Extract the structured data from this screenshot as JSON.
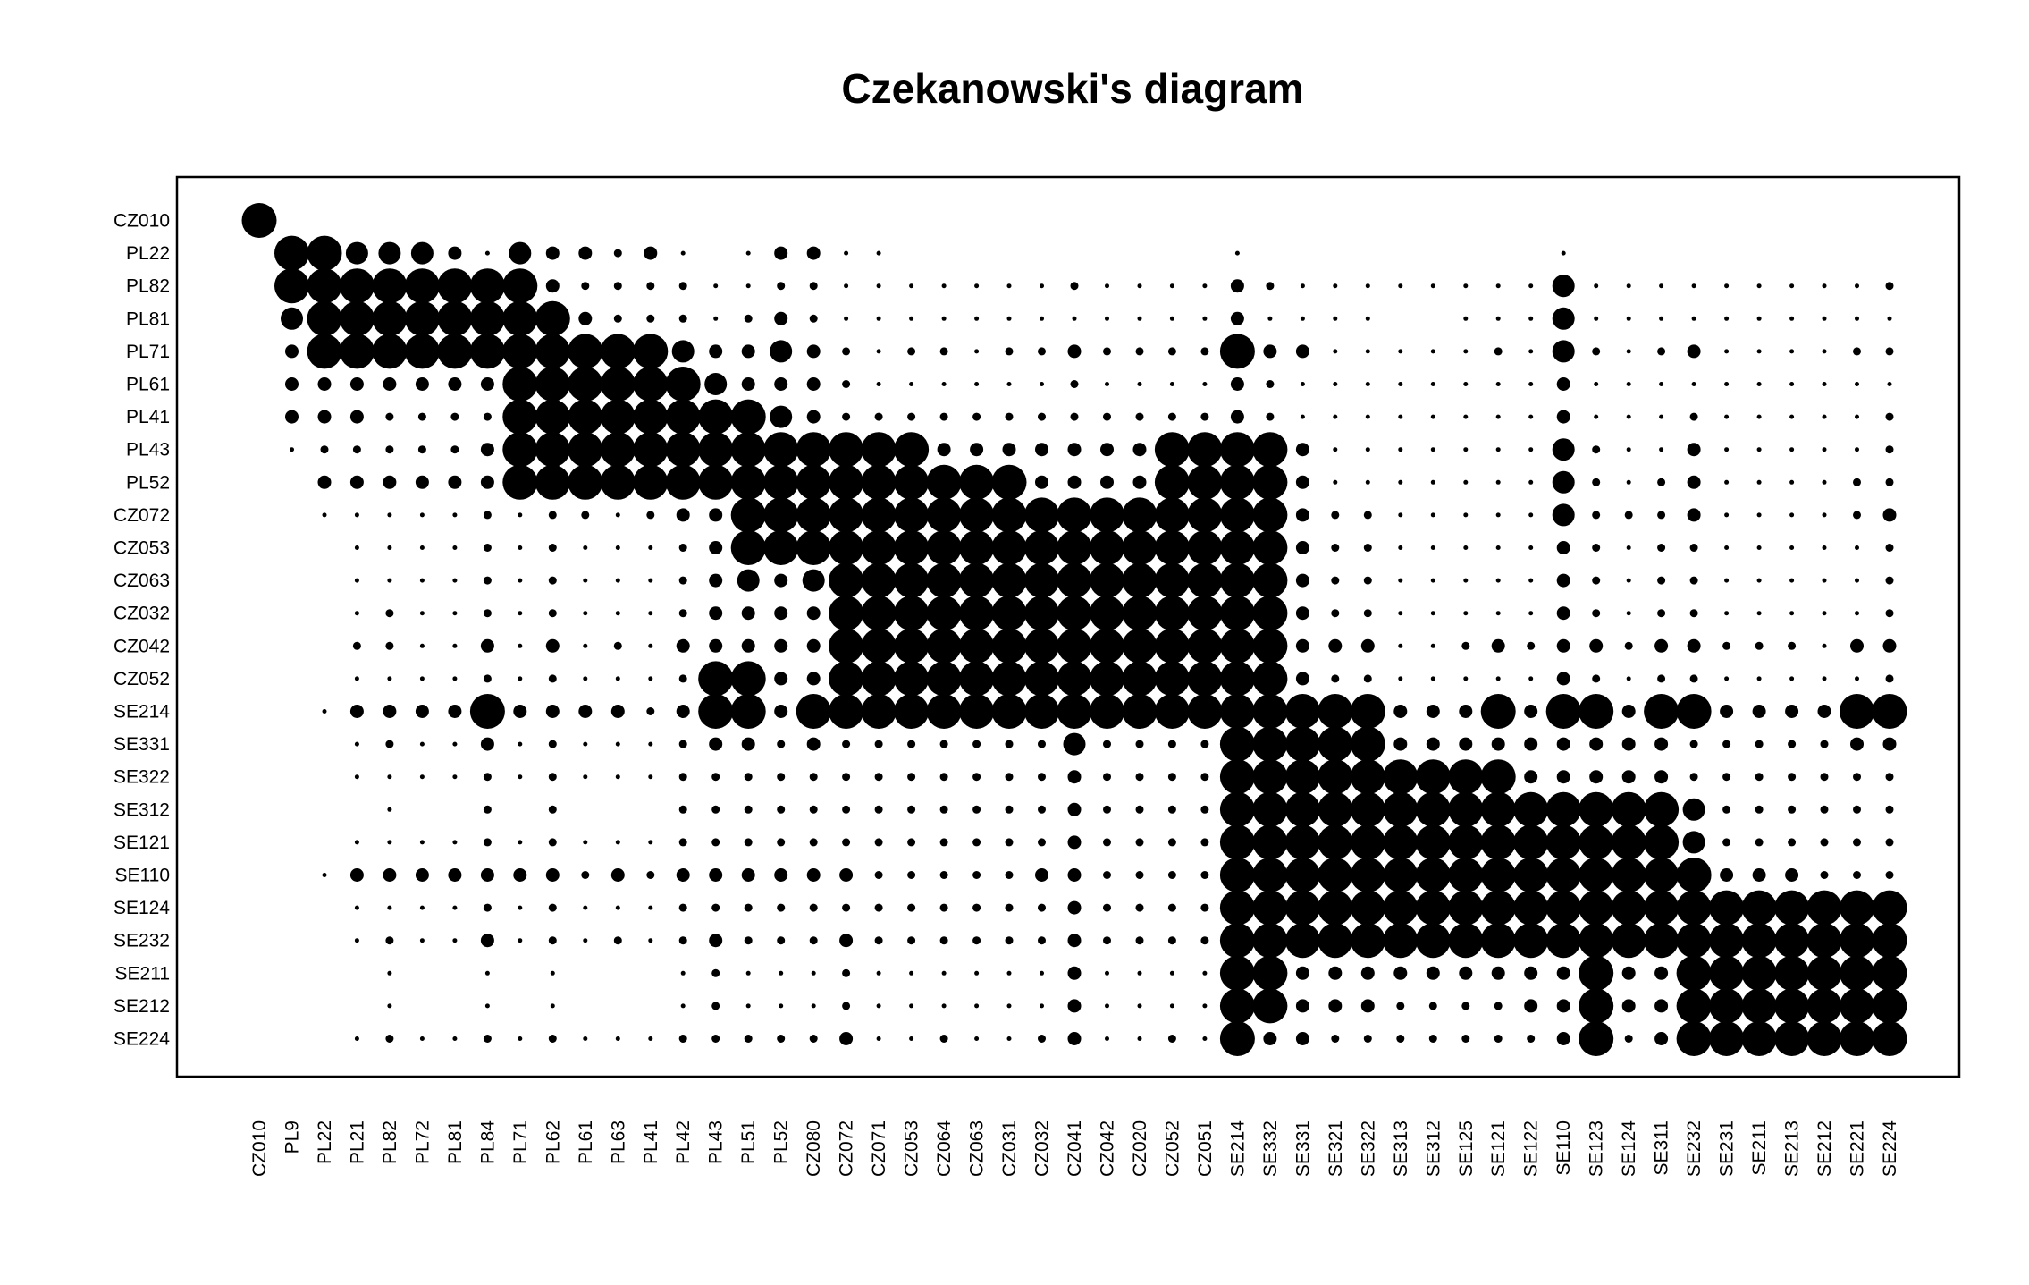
{
  "chart_data": {
    "type": "heatmap",
    "title": "Czekanowski's diagram",
    "xlabel": "",
    "ylabel": "",
    "grid": false,
    "legend": "none",
    "colors": {
      "mark": "#000000",
      "frame": "#000000",
      "background": "#ffffff"
    },
    "x_labels": [
      "CZ010",
      "PL9",
      "PL22",
      "PL21",
      "PL82",
      "PL72",
      "PL81",
      "PL84",
      "PL71",
      "PL62",
      "PL61",
      "PL63",
      "PL41",
      "PL42",
      "PL43",
      "PL51",
      "PL52",
      "CZ080",
      "CZ072",
      "CZ071",
      "CZ053",
      "CZ064",
      "CZ063",
      "CZ031",
      "CZ032",
      "CZ041",
      "CZ042",
      "CZ020",
      "CZ052",
      "CZ051",
      "SE214",
      "SE332",
      "SE331",
      "SE321",
      "SE322",
      "SE313",
      "SE312",
      "SE125",
      "SE121",
      "SE122",
      "SE110",
      "SE123",
      "SE124",
      "SE311",
      "SE232",
      "SE231",
      "SE211",
      "SE213",
      "SE212",
      "SE221",
      "SE224"
    ],
    "y_labels": [
      "CZ010",
      "PL22",
      "PL82",
      "PL81",
      "PL71",
      "PL61",
      "PL41",
      "PL43",
      "PL52",
      "CZ072",
      "CZ053",
      "CZ063",
      "CZ032",
      "CZ042",
      "CZ052",
      "SE214",
      "SE331",
      "SE322",
      "SE312",
      "SE121",
      "SE110",
      "SE124",
      "SE232",
      "SE211",
      "SE212",
      "SE224"
    ],
    "value_scale": "similarity class 0-5 (5 = largest circle)",
    "matrix": [
      [
        5,
        0,
        0,
        0,
        0,
        0,
        0,
        0,
        0,
        0,
        0,
        0,
        0,
        0,
        0,
        0,
        0,
        0,
        0,
        0,
        0,
        0,
        0,
        0,
        0,
        0,
        0,
        0,
        0,
        0,
        0,
        0,
        0,
        0,
        0,
        0,
        0,
        0,
        0,
        0,
        0,
        0,
        0,
        0,
        0,
        0,
        0,
        0,
        0,
        0,
        0
      ],
      [
        0,
        5,
        5,
        4,
        4,
        4,
        3,
        1,
        4,
        3,
        3,
        2,
        3,
        1,
        0,
        1,
        3,
        3,
        1,
        1,
        0,
        0,
        0,
        0,
        0,
        0,
        0,
        0,
        0,
        0,
        1,
        0,
        0,
        0,
        0,
        0,
        0,
        0,
        0,
        0,
        1,
        0,
        0,
        0,
        0,
        0,
        0,
        0,
        0,
        0,
        0
      ],
      [
        0,
        5,
        5,
        5,
        5,
        5,
        5,
        5,
        5,
        3,
        2,
        2,
        2,
        2,
        1,
        1,
        2,
        2,
        1,
        1,
        1,
        1,
        1,
        1,
        1,
        2,
        1,
        1,
        1,
        1,
        3,
        2,
        1,
        1,
        1,
        1,
        1,
        1,
        1,
        1,
        4,
        1,
        1,
        1,
        1,
        1,
        1,
        1,
        1,
        1,
        2
      ],
      [
        0,
        4,
        5,
        5,
        5,
        5,
        5,
        5,
        5,
        5,
        3,
        2,
        2,
        2,
        1,
        2,
        3,
        2,
        1,
        1,
        1,
        1,
        1,
        1,
        1,
        1,
        1,
        1,
        1,
        1,
        3,
        1,
        1,
        1,
        1,
        0,
        0,
        1,
        1,
        1,
        4,
        1,
        1,
        1,
        1,
        1,
        1,
        1,
        1,
        1,
        1
      ],
      [
        0,
        3,
        5,
        5,
        5,
        5,
        5,
        5,
        5,
        5,
        5,
        5,
        5,
        4,
        3,
        3,
        4,
        3,
        2,
        1,
        2,
        2,
        1,
        2,
        2,
        3,
        2,
        2,
        2,
        2,
        5,
        3,
        3,
        1,
        1,
        1,
        1,
        1,
        2,
        1,
        4,
        2,
        1,
        2,
        3,
        1,
        1,
        1,
        1,
        2,
        2
      ],
      [
        0,
        3,
        3,
        3,
        3,
        3,
        3,
        3,
        5,
        5,
        5,
        5,
        5,
        5,
        4,
        3,
        3,
        3,
        2,
        1,
        1,
        1,
        1,
        1,
        1,
        2,
        1,
        1,
        1,
        1,
        3,
        2,
        1,
        1,
        1,
        1,
        1,
        1,
        1,
        1,
        3,
        1,
        1,
        1,
        1,
        1,
        1,
        1,
        1,
        1,
        1
      ],
      [
        0,
        3,
        3,
        3,
        2,
        2,
        2,
        2,
        5,
        5,
        5,
        5,
        5,
        5,
        5,
        5,
        4,
        3,
        2,
        2,
        2,
        2,
        2,
        2,
        2,
        2,
        2,
        2,
        2,
        2,
        3,
        2,
        1,
        1,
        1,
        1,
        1,
        1,
        1,
        1,
        3,
        1,
        1,
        1,
        2,
        1,
        1,
        1,
        1,
        1,
        2
      ],
      [
        0,
        1,
        2,
        2,
        2,
        2,
        2,
        3,
        5,
        5,
        5,
        5,
        5,
        5,
        5,
        5,
        5,
        5,
        5,
        5,
        5,
        3,
        3,
        3,
        3,
        3,
        3,
        3,
        5,
        5,
        5,
        5,
        3,
        1,
        1,
        1,
        1,
        1,
        1,
        1,
        4,
        2,
        1,
        1,
        3,
        1,
        1,
        1,
        1,
        1,
        2
      ],
      [
        0,
        0,
        3,
        3,
        3,
        3,
        3,
        3,
        5,
        5,
        5,
        5,
        5,
        5,
        5,
        5,
        5,
        5,
        5,
        5,
        5,
        5,
        5,
        5,
        3,
        3,
        3,
        3,
        5,
        5,
        5,
        5,
        3,
        1,
        1,
        1,
        1,
        1,
        1,
        1,
        4,
        2,
        1,
        2,
        3,
        1,
        1,
        1,
        1,
        2,
        2
      ],
      [
        0,
        0,
        1,
        1,
        1,
        1,
        1,
        2,
        1,
        2,
        2,
        1,
        2,
        3,
        3,
        5,
        5,
        5,
        5,
        5,
        5,
        5,
        5,
        5,
        5,
        5,
        5,
        5,
        5,
        5,
        5,
        5,
        3,
        2,
        2,
        1,
        1,
        1,
        1,
        1,
        4,
        2,
        2,
        2,
        3,
        1,
        1,
        1,
        1,
        2,
        3
      ],
      [
        0,
        0,
        0,
        1,
        1,
        1,
        1,
        2,
        1,
        2,
        1,
        1,
        1,
        2,
        3,
        5,
        5,
        5,
        5,
        5,
        5,
        5,
        5,
        5,
        5,
        5,
        5,
        5,
        5,
        5,
        5,
        5,
        3,
        2,
        2,
        1,
        1,
        1,
        1,
        1,
        3,
        2,
        1,
        2,
        2,
        1,
        1,
        1,
        1,
        1,
        2
      ],
      [
        0,
        0,
        0,
        1,
        1,
        1,
        1,
        2,
        1,
        2,
        1,
        1,
        1,
        2,
        3,
        4,
        3,
        4,
        5,
        5,
        5,
        5,
        5,
        5,
        5,
        5,
        5,
        5,
        5,
        5,
        5,
        5,
        3,
        2,
        2,
        1,
        1,
        1,
        1,
        1,
        3,
        2,
        1,
        2,
        2,
        1,
        1,
        1,
        1,
        1,
        2
      ],
      [
        0,
        0,
        0,
        1,
        2,
        1,
        1,
        2,
        1,
        2,
        1,
        1,
        1,
        2,
        3,
        3,
        3,
        3,
        5,
        5,
        5,
        5,
        5,
        5,
        5,
        5,
        5,
        5,
        5,
        5,
        5,
        5,
        3,
        2,
        2,
        1,
        1,
        1,
        1,
        1,
        3,
        2,
        1,
        2,
        2,
        1,
        1,
        1,
        1,
        1,
        2
      ],
      [
        0,
        0,
        0,
        2,
        2,
        1,
        1,
        3,
        1,
        3,
        1,
        2,
        1,
        3,
        3,
        3,
        3,
        3,
        5,
        5,
        5,
        5,
        5,
        5,
        5,
        5,
        5,
        5,
        5,
        5,
        5,
        5,
        3,
        3,
        3,
        1,
        1,
        2,
        3,
        2,
        3,
        3,
        2,
        3,
        3,
        2,
        2,
        2,
        1,
        3,
        3
      ],
      [
        0,
        0,
        0,
        1,
        1,
        1,
        1,
        2,
        1,
        2,
        1,
        1,
        1,
        2,
        5,
        5,
        3,
        3,
        5,
        5,
        5,
        5,
        5,
        5,
        5,
        5,
        5,
        5,
        5,
        5,
        5,
        5,
        3,
        2,
        2,
        1,
        1,
        1,
        1,
        1,
        3,
        2,
        1,
        2,
        2,
        1,
        1,
        1,
        1,
        1,
        2
      ],
      [
        0,
        0,
        1,
        3,
        3,
        3,
        3,
        5,
        3,
        3,
        3,
        3,
        2,
        3,
        5,
        5,
        3,
        5,
        5,
        5,
        5,
        5,
        5,
        5,
        5,
        5,
        5,
        5,
        5,
        5,
        5,
        5,
        5,
        5,
        5,
        3,
        3,
        3,
        5,
        3,
        5,
        5,
        3,
        5,
        5,
        3,
        3,
        3,
        3,
        5,
        5
      ],
      [
        0,
        0,
        0,
        1,
        2,
        1,
        1,
        3,
        1,
        2,
        1,
        1,
        1,
        2,
        3,
        3,
        2,
        3,
        2,
        2,
        2,
        2,
        2,
        2,
        2,
        4,
        2,
        2,
        2,
        2,
        5,
        5,
        5,
        5,
        5,
        3,
        3,
        3,
        3,
        3,
        3,
        3,
        3,
        3,
        2,
        2,
        2,
        2,
        2,
        3,
        3
      ],
      [
        0,
        0,
        0,
        1,
        1,
        1,
        1,
        2,
        1,
        2,
        1,
        1,
        1,
        2,
        2,
        2,
        2,
        2,
        2,
        2,
        2,
        2,
        2,
        2,
        2,
        3,
        2,
        2,
        2,
        2,
        5,
        5,
        5,
        5,
        5,
        5,
        5,
        5,
        5,
        3,
        3,
        3,
        3,
        3,
        2,
        2,
        2,
        2,
        2,
        2,
        2
      ],
      [
        0,
        0,
        0,
        0,
        1,
        0,
        0,
        2,
        0,
        2,
        0,
        0,
        0,
        2,
        2,
        2,
        2,
        2,
        2,
        2,
        2,
        2,
        2,
        2,
        2,
        3,
        2,
        2,
        2,
        2,
        5,
        5,
        5,
        5,
        5,
        5,
        5,
        5,
        5,
        5,
        5,
        5,
        5,
        5,
        4,
        2,
        2,
        2,
        2,
        2,
        2
      ],
      [
        0,
        0,
        0,
        1,
        1,
        1,
        1,
        2,
        1,
        2,
        1,
        1,
        1,
        2,
        2,
        2,
        2,
        2,
        2,
        2,
        2,
        2,
        2,
        2,
        2,
        3,
        2,
        2,
        2,
        2,
        5,
        5,
        5,
        5,
        5,
        5,
        5,
        5,
        5,
        5,
        5,
        5,
        5,
        5,
        4,
        2,
        2,
        2,
        2,
        2,
        2
      ],
      [
        0,
        0,
        1,
        3,
        3,
        3,
        3,
        3,
        3,
        3,
        2,
        3,
        2,
        3,
        3,
        3,
        3,
        3,
        3,
        2,
        2,
        2,
        2,
        2,
        3,
        3,
        2,
        2,
        2,
        2,
        5,
        5,
        5,
        5,
        5,
        5,
        5,
        5,
        5,
        5,
        5,
        5,
        5,
        5,
        5,
        3,
        3,
        3,
        2,
        2,
        2
      ],
      [
        0,
        0,
        0,
        1,
        1,
        1,
        1,
        2,
        1,
        2,
        1,
        1,
        1,
        2,
        2,
        2,
        2,
        2,
        2,
        2,
        2,
        2,
        2,
        2,
        2,
        3,
        2,
        2,
        2,
        2,
        5,
        5,
        5,
        5,
        5,
        5,
        5,
        5,
        5,
        5,
        5,
        5,
        5,
        5,
        5,
        5,
        5,
        5,
        5,
        5,
        5
      ],
      [
        0,
        0,
        0,
        1,
        2,
        1,
        1,
        3,
        1,
        2,
        1,
        2,
        1,
        2,
        3,
        2,
        2,
        2,
        3,
        2,
        2,
        2,
        2,
        2,
        2,
        3,
        2,
        2,
        2,
        2,
        5,
        5,
        5,
        5,
        5,
        5,
        5,
        5,
        5,
        5,
        5,
        5,
        5,
        5,
        5,
        5,
        5,
        5,
        5,
        5,
        5
      ],
      [
        0,
        0,
        0,
        0,
        1,
        0,
        0,
        1,
        0,
        1,
        0,
        0,
        0,
        1,
        2,
        1,
        1,
        1,
        2,
        1,
        1,
        1,
        1,
        1,
        1,
        3,
        1,
        1,
        1,
        1,
        5,
        5,
        3,
        3,
        3,
        3,
        3,
        3,
        3,
        3,
        3,
        5,
        3,
        3,
        5,
        5,
        5,
        5,
        5,
        5,
        5
      ],
      [
        0,
        0,
        0,
        0,
        1,
        0,
        0,
        1,
        0,
        1,
        0,
        0,
        0,
        1,
        2,
        1,
        1,
        1,
        2,
        1,
        1,
        1,
        1,
        1,
        1,
        3,
        1,
        1,
        1,
        1,
        5,
        5,
        3,
        3,
        3,
        2,
        2,
        2,
        2,
        3,
        3,
        5,
        3,
        3,
        5,
        5,
        5,
        5,
        5,
        5,
        5
      ],
      [
        0,
        0,
        0,
        1,
        2,
        1,
        1,
        2,
        1,
        2,
        1,
        1,
        1,
        2,
        2,
        2,
        2,
        2,
        3,
        1,
        1,
        2,
        1,
        1,
        2,
        3,
        1,
        1,
        2,
        1,
        5,
        3,
        3,
        2,
        2,
        2,
        2,
        2,
        2,
        2,
        3,
        5,
        2,
        3,
        5,
        5,
        5,
        5,
        5,
        5,
        5
      ]
    ]
  }
}
